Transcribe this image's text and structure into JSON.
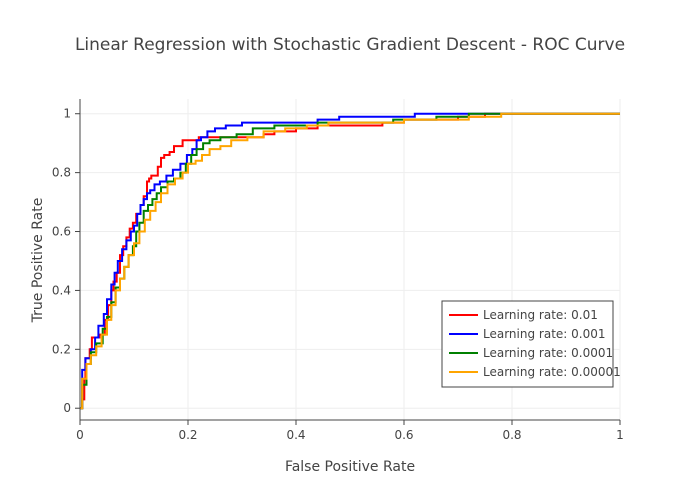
{
  "chart_data": {
    "type": "line",
    "title": "Linear Regression with Stochastic Gradient Descent - ROC Curve",
    "xlabel": "False Positive Rate",
    "ylabel": "True Positive Rate",
    "xlim": [
      0,
      1
    ],
    "ylim": [
      -0.04,
      1.05
    ],
    "xticks": [
      0,
      0.2,
      0.4,
      0.6,
      0.8,
      1
    ],
    "xtick_labels": [
      "0",
      "0.2",
      "0.4",
      "0.6",
      "0.8",
      "1"
    ],
    "yticks": [
      0,
      0.2,
      0.4,
      0.6,
      0.8,
      1
    ],
    "ytick_labels": [
      "0",
      "0.2",
      "0.4",
      "0.6",
      "0.8",
      "1"
    ],
    "grid": true,
    "legend_position": "bottom-right",
    "series": [
      {
        "name": "Learning rate: 0.01",
        "color": "#ff0000",
        "x": [
          0,
          0.004,
          0.008,
          0.01,
          0.018,
          0.022,
          0.036,
          0.046,
          0.052,
          0.058,
          0.062,
          0.068,
          0.074,
          0.08,
          0.086,
          0.092,
          0.098,
          0.104,
          0.112,
          0.118,
          0.124,
          0.128,
          0.132,
          0.138,
          0.144,
          0.15,
          0.156,
          0.162,
          0.166,
          0.174,
          0.19,
          0.206,
          0.22,
          0.236,
          0.26,
          0.3,
          0.34,
          0.36,
          0.4,
          0.44,
          0.5,
          0.56,
          0.6,
          0.64,
          0.7,
          0.75,
          0.8,
          1
        ],
        "y": [
          0,
          0.03,
          0.1,
          0.17,
          0.2,
          0.24,
          0.25,
          0.3,
          0.35,
          0.4,
          0.43,
          0.46,
          0.52,
          0.55,
          0.58,
          0.61,
          0.63,
          0.66,
          0.69,
          0.72,
          0.77,
          0.78,
          0.79,
          0.79,
          0.82,
          0.85,
          0.86,
          0.86,
          0.87,
          0.89,
          0.91,
          0.91,
          0.92,
          0.92,
          0.92,
          0.92,
          0.93,
          0.94,
          0.95,
          0.96,
          0.96,
          0.97,
          0.98,
          0.98,
          0.99,
          1,
          1,
          1
        ]
      },
      {
        "name": "Learning rate: 0.001",
        "color": "#0000ff",
        "x": [
          0,
          0.004,
          0.01,
          0.02,
          0.028,
          0.034,
          0.044,
          0.05,
          0.058,
          0.064,
          0.07,
          0.078,
          0.086,
          0.094,
          0.1,
          0.106,
          0.112,
          0.118,
          0.124,
          0.13,
          0.138,
          0.148,
          0.16,
          0.172,
          0.186,
          0.198,
          0.208,
          0.216,
          0.224,
          0.236,
          0.25,
          0.27,
          0.3,
          0.34,
          0.4,
          0.44,
          0.48,
          0.55,
          0.62,
          0.7,
          0.78,
          1
        ],
        "y": [
          0,
          0.13,
          0.17,
          0.2,
          0.24,
          0.28,
          0.32,
          0.37,
          0.42,
          0.46,
          0.5,
          0.54,
          0.57,
          0.6,
          0.62,
          0.66,
          0.69,
          0.71,
          0.73,
          0.74,
          0.76,
          0.77,
          0.79,
          0.81,
          0.83,
          0.86,
          0.88,
          0.91,
          0.92,
          0.94,
          0.95,
          0.96,
          0.97,
          0.97,
          0.97,
          0.98,
          0.99,
          0.99,
          1,
          1,
          1,
          1
        ]
      },
      {
        "name": "Learning rate: 0.0001",
        "color": "#008000",
        "x": [
          0,
          0.004,
          0.012,
          0.02,
          0.03,
          0.042,
          0.05,
          0.058,
          0.066,
          0.074,
          0.082,
          0.09,
          0.098,
          0.104,
          0.11,
          0.118,
          0.126,
          0.134,
          0.142,
          0.15,
          0.162,
          0.174,
          0.186,
          0.196,
          0.206,
          0.216,
          0.228,
          0.24,
          0.26,
          0.29,
          0.32,
          0.36,
          0.4,
          0.44,
          0.5,
          0.58,
          0.66,
          0.72,
          0.78,
          1
        ],
        "y": [
          0,
          0.08,
          0.15,
          0.19,
          0.22,
          0.27,
          0.31,
          0.36,
          0.41,
          0.44,
          0.48,
          0.52,
          0.55,
          0.6,
          0.63,
          0.67,
          0.69,
          0.71,
          0.73,
          0.75,
          0.77,
          0.78,
          0.8,
          0.83,
          0.86,
          0.88,
          0.9,
          0.91,
          0.92,
          0.93,
          0.95,
          0.96,
          0.96,
          0.97,
          0.97,
          0.98,
          0.99,
          1,
          1,
          1
        ]
      },
      {
        "name": "Learning rate: 0.00001",
        "color": "#ffa500",
        "x": [
          0,
          0.004,
          0.012,
          0.02,
          0.03,
          0.04,
          0.05,
          0.058,
          0.066,
          0.074,
          0.082,
          0.09,
          0.1,
          0.11,
          0.12,
          0.13,
          0.14,
          0.15,
          0.162,
          0.176,
          0.19,
          0.2,
          0.214,
          0.226,
          0.24,
          0.26,
          0.28,
          0.31,
          0.34,
          0.38,
          0.42,
          0.46,
          0.52,
          0.6,
          0.66,
          0.72,
          0.78,
          1
        ],
        "y": [
          0,
          0.1,
          0.15,
          0.18,
          0.21,
          0.25,
          0.3,
          0.35,
          0.4,
          0.44,
          0.48,
          0.52,
          0.56,
          0.6,
          0.64,
          0.67,
          0.7,
          0.73,
          0.76,
          0.78,
          0.8,
          0.83,
          0.84,
          0.86,
          0.88,
          0.89,
          0.91,
          0.92,
          0.94,
          0.95,
          0.96,
          0.97,
          0.97,
          0.98,
          0.98,
          0.99,
          1,
          1
        ]
      }
    ]
  }
}
